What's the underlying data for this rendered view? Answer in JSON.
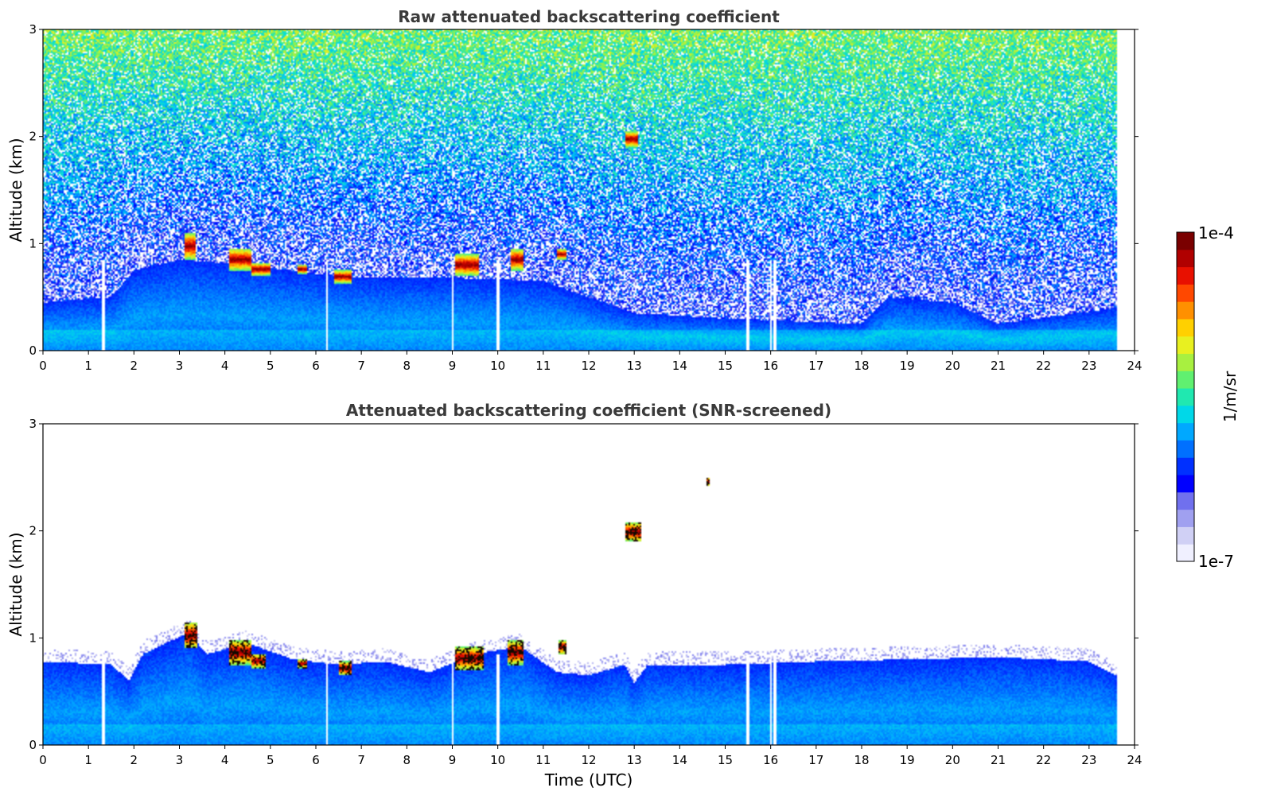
{
  "chart_data": [
    {
      "type": "heatmap",
      "title": "Raw attenuated backscattering coefficient",
      "xlabel": "",
      "ylabel": "Altitude (km)",
      "xlim": [
        0,
        24
      ],
      "ylim": [
        0,
        3
      ],
      "xticks": [
        "0",
        "1",
        "2",
        "3",
        "4",
        "5",
        "6",
        "7",
        "8",
        "9",
        "10",
        "11",
        "12",
        "13",
        "14",
        "15",
        "16",
        "17",
        "18",
        "19",
        "20",
        "21",
        "22",
        "23",
        "24"
      ],
      "yticks": [
        "0",
        "1",
        "2",
        "3"
      ],
      "data_end_time": 23.6,
      "noise_level": 1.0,
      "aerosol_layer_top_km": [
        {
          "t": 0,
          "top": 0.45
        },
        {
          "t": 1.5,
          "top": 0.5
        },
        {
          "t": 2.0,
          "top": 0.75
        },
        {
          "t": 3.0,
          "top": 0.85
        },
        {
          "t": 4.5,
          "top": 0.8
        },
        {
          "t": 6.0,
          "top": 0.72
        },
        {
          "t": 7.0,
          "top": 0.68
        },
        {
          "t": 9.0,
          "top": 0.68
        },
        {
          "t": 11.0,
          "top": 0.65
        },
        {
          "t": 12.0,
          "top": 0.5
        },
        {
          "t": 13.0,
          "top": 0.35
        },
        {
          "t": 15.0,
          "top": 0.3
        },
        {
          "t": 18.0,
          "top": 0.25
        },
        {
          "t": 18.6,
          "top": 0.5
        },
        {
          "t": 20.0,
          "top": 0.45
        },
        {
          "t": 21.0,
          "top": 0.25
        },
        {
          "t": 23.6,
          "top": 0.4
        }
      ],
      "cloud_patches": [
        {
          "t0": 3.1,
          "t1": 3.35,
          "z0": 0.85,
          "z1": 1.1
        },
        {
          "t0": 4.1,
          "t1": 4.6,
          "z0": 0.75,
          "z1": 0.95
        },
        {
          "t0": 4.6,
          "t1": 5.0,
          "z0": 0.7,
          "z1": 0.82
        },
        {
          "t0": 5.6,
          "t1": 5.8,
          "z0": 0.72,
          "z1": 0.8
        },
        {
          "t0": 6.4,
          "t1": 6.8,
          "z0": 0.63,
          "z1": 0.75
        },
        {
          "t0": 9.05,
          "t1": 9.6,
          "z0": 0.7,
          "z1": 0.9
        },
        {
          "t0": 10.3,
          "t1": 10.55,
          "z0": 0.75,
          "z1": 0.95
        },
        {
          "t0": 11.3,
          "t1": 11.5,
          "z0": 0.85,
          "z1": 0.95
        },
        {
          "t0": 12.8,
          "t1": 13.1,
          "z0": 1.9,
          "z1": 2.05
        }
      ],
      "gap_times": [
        1.33,
        6.25,
        9.0,
        10.0,
        15.5,
        16.0,
        16.1
      ]
    },
    {
      "type": "heatmap",
      "title": "Attenuated backscattering coefficient (SNR-screened)",
      "xlabel": "Time (UTC)",
      "ylabel": "Altitude (km)",
      "xlim": [
        0,
        24
      ],
      "ylim": [
        0,
        3
      ],
      "xticks": [
        "0",
        "1",
        "2",
        "3",
        "4",
        "5",
        "6",
        "7",
        "8",
        "9",
        "10",
        "11",
        "12",
        "13",
        "14",
        "15",
        "16",
        "17",
        "18",
        "19",
        "20",
        "21",
        "22",
        "23",
        "24"
      ],
      "yticks": [
        "0",
        "1",
        "2",
        "3"
      ],
      "data_end_time": 23.6,
      "noise_level": 0.0,
      "aerosol_layer_top_km": [
        {
          "t": 0,
          "top": 0.78
        },
        {
          "t": 1.5,
          "top": 0.75
        },
        {
          "t": 1.9,
          "top": 0.6
        },
        {
          "t": 2.2,
          "top": 0.85
        },
        {
          "t": 3.2,
          "top": 1.05
        },
        {
          "t": 3.6,
          "top": 0.85
        },
        {
          "t": 4.5,
          "top": 0.95
        },
        {
          "t": 5.5,
          "top": 0.8
        },
        {
          "t": 6.5,
          "top": 0.75
        },
        {
          "t": 7.5,
          "top": 0.78
        },
        {
          "t": 8.5,
          "top": 0.68
        },
        {
          "t": 9.5,
          "top": 0.85
        },
        {
          "t": 10.5,
          "top": 0.92
        },
        {
          "t": 11.3,
          "top": 0.68
        },
        {
          "t": 12.0,
          "top": 0.65
        },
        {
          "t": 12.8,
          "top": 0.75
        },
        {
          "t": 13.0,
          "top": 0.58
        },
        {
          "t": 13.3,
          "top": 0.75
        },
        {
          "t": 15.0,
          "top": 0.75
        },
        {
          "t": 17.0,
          "top": 0.78
        },
        {
          "t": 19.0,
          "top": 0.8
        },
        {
          "t": 21.0,
          "top": 0.82
        },
        {
          "t": 23.0,
          "top": 0.78
        },
        {
          "t": 23.6,
          "top": 0.65
        }
      ],
      "cloud_patches": [
        {
          "t0": 3.1,
          "t1": 3.4,
          "z0": 0.9,
          "z1": 1.15
        },
        {
          "t0": 4.1,
          "t1": 4.6,
          "z0": 0.75,
          "z1": 0.98
        },
        {
          "t0": 4.6,
          "t1": 4.9,
          "z0": 0.72,
          "z1": 0.85
        },
        {
          "t0": 5.6,
          "t1": 5.8,
          "z0": 0.72,
          "z1": 0.8
        },
        {
          "t0": 6.5,
          "t1": 6.8,
          "z0": 0.65,
          "z1": 0.78
        },
        {
          "t0": 9.05,
          "t1": 9.7,
          "z0": 0.7,
          "z1": 0.92
        },
        {
          "t0": 10.2,
          "t1": 10.55,
          "z0": 0.75,
          "z1": 0.98
        },
        {
          "t0": 11.35,
          "t1": 11.5,
          "z0": 0.85,
          "z1": 0.98
        },
        {
          "t0": 12.8,
          "t1": 13.15,
          "z0": 1.9,
          "z1": 2.08
        },
        {
          "t0": 14.6,
          "t1": 14.65,
          "z0": 2.42,
          "z1": 2.5
        }
      ],
      "gap_times": [
        1.33,
        6.25,
        9.0,
        10.0,
        15.5,
        16.0,
        16.1
      ]
    }
  ],
  "colorbar": {
    "max_label": "1e-4",
    "min_label": "1e-7",
    "unit_label": "1/m/sr",
    "colors": [
      "#f0f0ff",
      "#d0d0f5",
      "#a0a0f0",
      "#7070ee",
      "#0000ff",
      "#0030ff",
      "#0070ff",
      "#00a8ff",
      "#00d8e8",
      "#20e8b0",
      "#60f070",
      "#a8f040",
      "#e8f020",
      "#ffd000",
      "#ff9000",
      "#ff4800",
      "#e81000",
      "#b00000",
      "#7a0000"
    ]
  }
}
